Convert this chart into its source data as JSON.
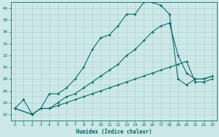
{
  "xlabel": "Humidex (Indice chaleur)",
  "bg_color": "#cce8e8",
  "grid_color": "#aacccc",
  "line_color": "#006666",
  "xlim": [
    -0.5,
    23.5
  ],
  "ylim": [
    21,
    41
  ],
  "xticks": [
    0,
    1,
    2,
    3,
    4,
    5,
    6,
    7,
    8,
    9,
    10,
    11,
    12,
    13,
    14,
    15,
    16,
    17,
    18,
    19,
    20,
    21,
    22,
    23
  ],
  "yticks": [
    22,
    24,
    26,
    28,
    30,
    32,
    34,
    36,
    38,
    40
  ],
  "line1_x": [
    0,
    1,
    2,
    3,
    4,
    5,
    6,
    7,
    8,
    9,
    10,
    11,
    12,
    13,
    14,
    15,
    16,
    17,
    18,
    19,
    20,
    21,
    22,
    23
  ],
  "line1_y": [
    23,
    24.5,
    22,
    23,
    25.5,
    25.5,
    26.5,
    28,
    30,
    33,
    35,
    35.5,
    37,
    39,
    39,
    41,
    41,
    40.5,
    39,
    28,
    27,
    28,
    28,
    28.5
  ],
  "line2_x": [
    0,
    2,
    3,
    4,
    5,
    6,
    7,
    8,
    9,
    10,
    11,
    12,
    13,
    14,
    15,
    16,
    17,
    18,
    19,
    20,
    21,
    22,
    23
  ],
  "line2_y": [
    23,
    22,
    23,
    23,
    24,
    25,
    25.5,
    26.5,
    27.5,
    28.5,
    29.5,
    30.5,
    32,
    33,
    34.5,
    36,
    37,
    37.5,
    32,
    29,
    28,
    28,
    28.5
  ],
  "line3_x": [
    0,
    2,
    3,
    4,
    5,
    6,
    7,
    8,
    9,
    10,
    11,
    12,
    13,
    14,
    15,
    16,
    17,
    18,
    19,
    20,
    21,
    22,
    23
  ],
  "line3_y": [
    23,
    22,
    23,
    23,
    23.5,
    24,
    24.5,
    25,
    25.5,
    26,
    26.5,
    27,
    27.5,
    28,
    28.5,
    29,
    29.5,
    30,
    30.5,
    31,
    27.5,
    27.5,
    28
  ]
}
